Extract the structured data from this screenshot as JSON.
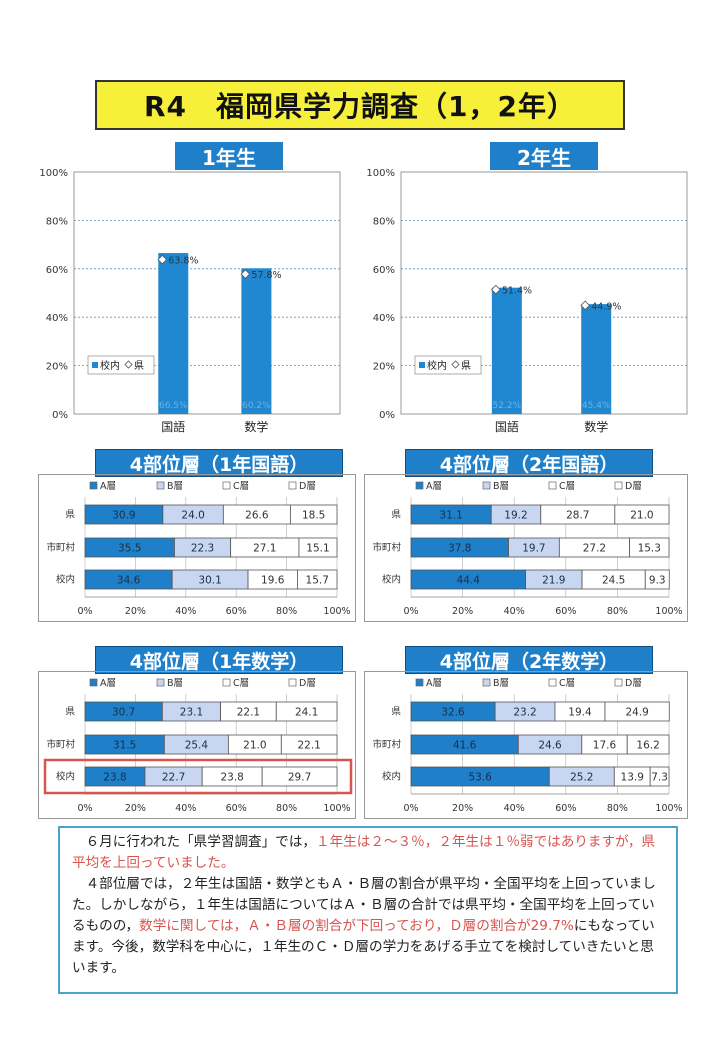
{
  "title": "R4　福岡県学力調査（1，2年）",
  "grade_headers": [
    "1年生",
    "2年生"
  ],
  "layer_headers": [
    "4部位層（1年国語）",
    "4部位層（2年国語）",
    "4部位層（1年数学）",
    "4部位層（2年数学）"
  ],
  "colors": {
    "school_bar": "#1f88d0",
    "layer_A": "#1f7fc8",
    "layer_B": "#c9d6f2",
    "layer_C": "#ffffff",
    "layer_D": "#ffffff",
    "highlight": "#d9534f",
    "title_bg": "#f6f03a"
  },
  "chart_data": [
    {
      "type": "bar",
      "id": "grade1",
      "categories": [
        "国語",
        "数学"
      ],
      "series": [
        {
          "name": "校内",
          "values": [
            66.5,
            60.2
          ],
          "labels": [
            "66.5%",
            "60.2%"
          ]
        },
        {
          "name": "県",
          "values": [
            63.8,
            57.8
          ],
          "labels": [
            "63.8%",
            "57.8%"
          ]
        }
      ],
      "ylim": [
        0,
        100
      ],
      "yticks": [
        "0%",
        "20%",
        "40%",
        "60%",
        "80%",
        "100%"
      ],
      "legend": [
        "校内",
        "県"
      ],
      "legend_position": "left"
    },
    {
      "type": "bar",
      "id": "grade2",
      "categories": [
        "国語",
        "数学"
      ],
      "series": [
        {
          "name": "校内",
          "values": [
            52.2,
            45.4
          ],
          "labels": [
            "52.2%",
            "45.4%"
          ]
        },
        {
          "name": "県",
          "values": [
            51.4,
            44.9
          ],
          "labels": [
            "51.4%",
            "44.9%"
          ]
        }
      ],
      "ylim": [
        0,
        100
      ],
      "yticks": [
        "0%",
        "20%",
        "40%",
        "60%",
        "80%",
        "100%"
      ],
      "legend": [
        "校内",
        "県"
      ],
      "legend_position": "left"
    },
    {
      "type": "bar",
      "orientation": "horizontal-stacked",
      "id": "layer_g1_japanese",
      "legend": [
        "A層",
        "B層",
        "C層",
        "D層"
      ],
      "categories": [
        "県",
        "市町村",
        "校内"
      ],
      "rows": [
        [
          30.9,
          24.0,
          26.6,
          18.5
        ],
        [
          35.5,
          22.3,
          27.1,
          15.1
        ],
        [
          34.6,
          30.1,
          19.6,
          15.7
        ]
      ],
      "labels": [
        [
          "30.9",
          "24.0",
          "26.6",
          "18.5"
        ],
        [
          "35.5",
          "22.3",
          "27.1",
          "15.1"
        ],
        [
          "34.6",
          "30.1",
          "19.6",
          "15.7"
        ]
      ],
      "xticks": [
        "0%",
        "20%",
        "40%",
        "60%",
        "80%",
        "100%"
      ],
      "highlight_row": -1
    },
    {
      "type": "bar",
      "orientation": "horizontal-stacked",
      "id": "layer_g2_japanese",
      "legend": [
        "A層",
        "B層",
        "C層",
        "D層"
      ],
      "categories": [
        "県",
        "市町村",
        "校内"
      ],
      "rows": [
        [
          31.1,
          19.2,
          28.7,
          21.0
        ],
        [
          37.8,
          19.7,
          27.2,
          15.3
        ],
        [
          44.4,
          21.9,
          24.5,
          9.3
        ]
      ],
      "labels": [
        [
          "31.1",
          "19.2",
          "28.7",
          "21.0"
        ],
        [
          "37.8",
          "19.7",
          "27.2",
          "15.3"
        ],
        [
          "44.4",
          "21.9",
          "24.5",
          "9.3"
        ]
      ],
      "xticks": [
        "0%",
        "20%",
        "40%",
        "60%",
        "80%",
        "100%"
      ],
      "highlight_row": -1
    },
    {
      "type": "bar",
      "orientation": "horizontal-stacked",
      "id": "layer_g1_math",
      "legend": [
        "A層",
        "B層",
        "C層",
        "D層"
      ],
      "categories": [
        "県",
        "市町村",
        "校内"
      ],
      "rows": [
        [
          30.7,
          23.1,
          22.1,
          24.1
        ],
        [
          31.5,
          25.4,
          21.0,
          22.1
        ],
        [
          23.8,
          22.7,
          23.8,
          29.7
        ]
      ],
      "labels": [
        [
          "30.7",
          "23.1",
          "22.1",
          "24.1"
        ],
        [
          "31.5",
          "25.4",
          "21.0",
          "22.1"
        ],
        [
          "23.8",
          "22.7",
          "23.8",
          "29.7"
        ]
      ],
      "xticks": [
        "0%",
        "20%",
        "40%",
        "60%",
        "80%",
        "100%"
      ],
      "highlight_row": 2
    },
    {
      "type": "bar",
      "orientation": "horizontal-stacked",
      "id": "layer_g2_math",
      "legend": [
        "A層",
        "B層",
        "C層",
        "D層"
      ],
      "categories": [
        "県",
        "市町村",
        "校内"
      ],
      "rows": [
        [
          32.6,
          23.2,
          19.4,
          24.9
        ],
        [
          41.6,
          24.6,
          17.6,
          16.2
        ],
        [
          53.6,
          25.2,
          13.9,
          7.3
        ]
      ],
      "labels": [
        [
          "32.6",
          "23.2",
          "19.4",
          "24.9"
        ],
        [
          "41.6",
          "24.6",
          "17.6",
          "16.2"
        ],
        [
          "53.6",
          "25.2",
          "13.9",
          "7.3"
        ]
      ],
      "xticks": [
        "0%",
        "20%",
        "40%",
        "60%",
        "80%",
        "100%"
      ],
      "highlight_row": -1
    }
  ],
  "summary": {
    "p1_a": "６月に行われた「県学習調査」では，",
    "p1_b": "１年生は２～３％，２年生は１％弱ではありますが，県平均を上回っていました。",
    "p2_a": "４部位層では，２年生は国語・数学ともＡ・Ｂ層の割合が県平均・全国平均を上回っていました。しかしながら，１年生は国語についてはＡ・Ｂ層の合計では県平均・全国平均を上回っているものの，",
    "p2_b": "数学に関しては，Ａ・Ｂ層の割合が下回っており，Ｄ層の割合が29.7%",
    "p2_c": "にもなっています。今後，数学科を中心に，１年生のＣ・Ｄ層の学力をあげる手立てを検討していきたいと思います。"
  }
}
